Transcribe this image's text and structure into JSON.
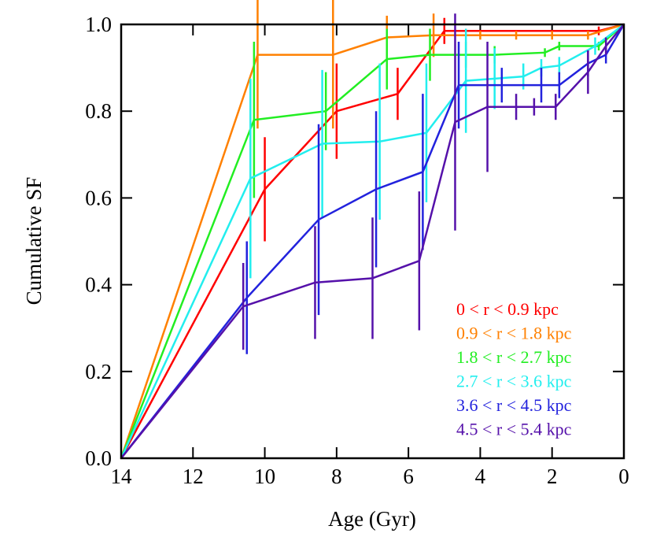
{
  "chart_data": {
    "type": "line",
    "x_label": "Age (Gyr)",
    "y_label": "Cumulative SF",
    "xlim": [
      14,
      0
    ],
    "ylim": [
      0,
      1.0
    ],
    "xticks": [
      14,
      12,
      10,
      8,
      6,
      4,
      2,
      0
    ],
    "yticks": [
      {
        "value": 0,
        "label": "0.0"
      },
      {
        "value": 0.2,
        "label": "0.2"
      },
      {
        "value": 0.4,
        "label": "0.4"
      },
      {
        "value": 0.6,
        "label": "0.6"
      },
      {
        "value": 0.8,
        "label": "0.8"
      },
      {
        "value": 1.0,
        "label": "1.0"
      }
    ],
    "series": [
      {
        "name": "0 < r < 0.9 kpc",
        "color": "#ff0000",
        "x": [
          14,
          10.0,
          8.0,
          6.3,
          5.0,
          0.7,
          0
        ],
        "values": [
          0,
          0.62,
          0.8,
          0.84,
          0.985,
          0.985,
          1.0
        ],
        "errors": [
          0,
          0.12,
          0.11,
          0.06,
          0.03,
          0.01,
          0
        ]
      },
      {
        "name": "0.9 < r < 1.8 kpc",
        "color": "#ff8000",
        "x": [
          14,
          10.2,
          8.1,
          6.6,
          5.3,
          4.0,
          3.0,
          2.0,
          1.0,
          0
        ],
        "values": [
          0,
          0.93,
          0.93,
          0.97,
          0.975,
          0.975,
          0.975,
          0.975,
          0.975,
          1.0
        ],
        "errors": [
          0,
          0.17,
          0.17,
          0.05,
          0.05,
          0.01,
          0.01,
          0.01,
          0.01,
          0
        ]
      },
      {
        "name": "1.8 < r < 2.7 kpc",
        "color": "#22ee22",
        "x": [
          14,
          10.3,
          8.3,
          6.6,
          5.4,
          4.4,
          3.6,
          2.2,
          1.8,
          0.7,
          0
        ],
        "values": [
          0,
          0.78,
          0.8,
          0.92,
          0.93,
          0.93,
          0.93,
          0.935,
          0.95,
          0.95,
          1.0
        ],
        "errors": [
          0,
          0.18,
          0.09,
          0.07,
          0.06,
          0.03,
          0.02,
          0.01,
          0.01,
          0.01,
          0
        ]
      },
      {
        "name": "2.7 < r < 3.6 kpc",
        "color": "#22eeee",
        "x": [
          14,
          10.4,
          8.4,
          6.8,
          5.5,
          4.4,
          3.6,
          2.8,
          2.3,
          1.8,
          0.8,
          0
        ],
        "values": [
          0,
          0.645,
          0.725,
          0.73,
          0.75,
          0.87,
          0.875,
          0.88,
          0.9,
          0.905,
          0.95,
          1.0
        ],
        "errors": [
          0,
          0.23,
          0.17,
          0.18,
          0.16,
          0.12,
          0.07,
          0.03,
          0.02,
          0.02,
          0.02,
          0
        ]
      },
      {
        "name": "3.6 < r < 4.5 kpc",
        "color": "#2222dd",
        "x": [
          14,
          10.5,
          8.5,
          6.9,
          5.6,
          4.6,
          3.4,
          2.3,
          1.8,
          1.0,
          0.5,
          0
        ],
        "values": [
          0,
          0.37,
          0.55,
          0.62,
          0.66,
          0.86,
          0.86,
          0.86,
          0.86,
          0.91,
          0.93,
          1.0
        ],
        "errors": [
          0,
          0.13,
          0.22,
          0.18,
          0.18,
          0.1,
          0.04,
          0.04,
          0.03,
          0.03,
          0.02,
          0
        ]
      },
      {
        "name": "4.5 < r < 5.4 kpc",
        "color": "#5511aa",
        "x": [
          14,
          10.6,
          8.6,
          7.0,
          5.7,
          4.7,
          3.8,
          3.0,
          2.5,
          1.9,
          1.0,
          0.5,
          0
        ],
        "values": [
          0,
          0.35,
          0.405,
          0.415,
          0.455,
          0.775,
          0.81,
          0.81,
          0.81,
          0.81,
          0.89,
          0.95,
          1.0
        ],
        "errors": [
          0,
          0.1,
          0.13,
          0.14,
          0.16,
          0.25,
          0.15,
          0.03,
          0.02,
          0.03,
          0.05,
          0.02,
          0
        ]
      }
    ]
  }
}
